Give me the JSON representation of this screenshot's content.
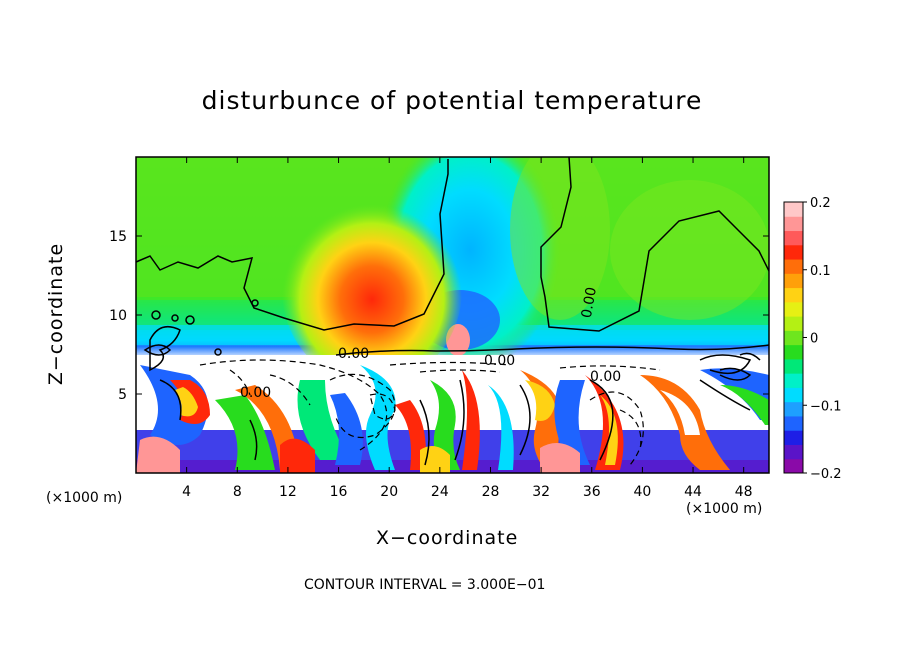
{
  "chart_data": {
    "type": "heatmap",
    "title": "disturbunce of potential temperature",
    "xlabel": "X−coordinate",
    "ylabel": "Z−coordinate",
    "x_unit": "(×1000 m)",
    "x_unit_right": "(×1000 m)",
    "xlim": [
      0,
      50
    ],
    "ylim": [
      0,
      20
    ],
    "x_ticks": [
      4,
      8,
      12,
      16,
      20,
      24,
      28,
      32,
      36,
      40,
      44,
      48
    ],
    "y_ticks": [
      5,
      10,
      15
    ],
    "colorbar": {
      "range": [
        -0.2,
        0.2
      ],
      "tick_values": [
        0.2,
        0.1,
        0,
        -0.1,
        -0.2
      ],
      "tick_labels": [
        "0.2",
        "0.1",
        "0",
        "−0.1",
        "−0.2"
      ],
      "colors": [
        "#8a0aa8",
        "#5a14c8",
        "#1e1ee6",
        "#1e64ff",
        "#1ea0ff",
        "#00dcff",
        "#00f0c8",
        "#00e878",
        "#28dc1e",
        "#6ee61e",
        "#b4f014",
        "#e6f014",
        "#ffd214",
        "#ffa00a",
        "#ff6e0a",
        "#ff280a",
        "#ff5a5a",
        "#ff9696",
        "#ffc8c8"
      ]
    },
    "contour_labels": [
      "0.00",
      "0.00",
      "0.00",
      "0.00",
      "0.00"
    ],
    "contour_interval_text": "CONTOUR INTERVAL = 3.000E−01"
  }
}
